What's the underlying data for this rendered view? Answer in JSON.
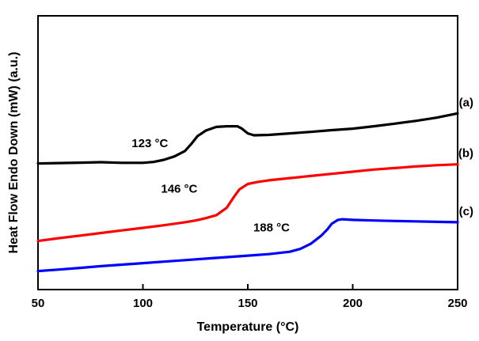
{
  "chart_data": {
    "type": "line",
    "title": "",
    "xlabel": "Temperature (°C)",
    "ylabel": "Heat Flow Endo Down (mW) (a.u.)",
    "xlim": [
      50,
      250
    ],
    "ylim": [
      0,
      1
    ],
    "x_ticks": [
      50,
      100,
      150,
      200,
      250
    ],
    "y_ticks_shown": false,
    "grid": false,
    "legend": "none",
    "series": [
      {
        "name": "(a)",
        "color": "#000000",
        "x": [
          50,
          60,
          70,
          80,
          90,
          100,
          105,
          110,
          115,
          120,
          123,
          126,
          130,
          135,
          140,
          145,
          147,
          150,
          153,
          160,
          170,
          180,
          190,
          200,
          210,
          220,
          230,
          240,
          250
        ],
        "y": [
          0.505,
          0.507,
          0.509,
          0.511,
          0.508,
          0.508,
          0.512,
          0.522,
          0.538,
          0.563,
          0.595,
          0.632,
          0.658,
          0.675,
          0.678,
          0.678,
          0.668,
          0.645,
          0.636,
          0.638,
          0.645,
          0.652,
          0.66,
          0.667,
          0.678,
          0.69,
          0.703,
          0.718,
          0.738
        ]
      },
      {
        "name": "(b)",
        "color": "#ff0000",
        "x": [
          50,
          60,
          70,
          80,
          90,
          100,
          110,
          120,
          125,
          130,
          135,
          140,
          143,
          146,
          150,
          155,
          160,
          170,
          180,
          190,
          200,
          210,
          220,
          230,
          240,
          250
        ],
        "y": [
          0.145,
          0.158,
          0.17,
          0.182,
          0.194,
          0.206,
          0.218,
          0.232,
          0.24,
          0.251,
          0.265,
          0.3,
          0.345,
          0.385,
          0.41,
          0.42,
          0.427,
          0.437,
          0.447,
          0.457,
          0.467,
          0.477,
          0.484,
          0.491,
          0.497,
          0.501
        ]
      },
      {
        "name": "(c)",
        "color": "#0000ff",
        "x": [
          50,
          60,
          70,
          80,
          90,
          100,
          110,
          120,
          130,
          140,
          150,
          160,
          170,
          175,
          180,
          185,
          188,
          190,
          193,
          195,
          200,
          210,
          220,
          230,
          240,
          250
        ],
        "y": [
          0.005,
          0.012,
          0.02,
          0.028,
          0.035,
          0.042,
          0.049,
          0.056,
          0.063,
          0.07,
          0.077,
          0.084,
          0.095,
          0.108,
          0.132,
          0.17,
          0.2,
          0.225,
          0.243,
          0.246,
          0.243,
          0.24,
          0.238,
          0.236,
          0.234,
          0.232
        ]
      }
    ],
    "annotations": [
      {
        "text": "123 °C",
        "x": 112,
        "y": 0.58
      },
      {
        "text": "146 °C",
        "x": 126,
        "y": 0.37
      },
      {
        "text": "188 °C",
        "x": 170,
        "y": 0.19
      }
    ]
  }
}
